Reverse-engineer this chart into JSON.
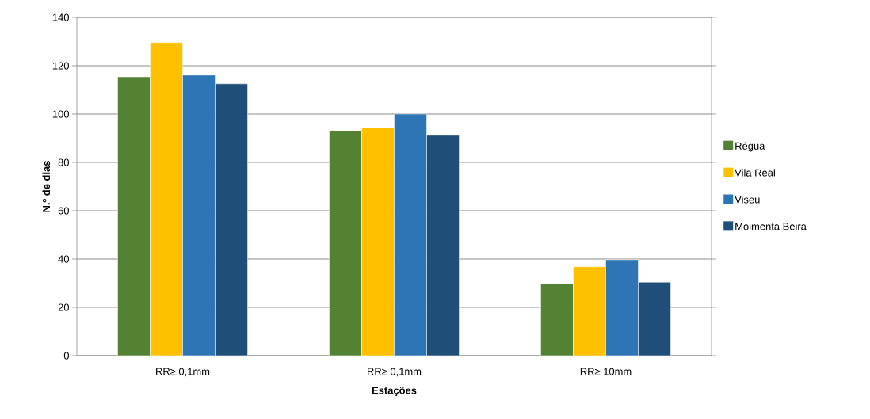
{
  "chart_data": {
    "type": "bar",
    "xlabel": "Estações",
    "ylabel": "N.º de dias",
    "categories": [
      "RR≥ 0,1mm",
      "RR≥ 0,1mm",
      "RR≥ 10mm"
    ],
    "series": [
      {
        "name": "Régua",
        "color": "#548235",
        "values": [
          115.4,
          93.1,
          29.8
        ]
      },
      {
        "name": "Vila Real",
        "color": "#ffc000",
        "values": [
          129.6,
          94.4,
          36.8
        ]
      },
      {
        "name": "Viseu",
        "color": "#2e75b6",
        "values": [
          116.1,
          100,
          39.7
        ]
      },
      {
        "name": "Moimenta Beira",
        "color": "#1f4e79",
        "values": [
          112.5,
          91.2,
          30.4
        ]
      }
    ],
    "ylim": [
      0,
      140
    ],
    "yticks": [
      0,
      20,
      40,
      60,
      80,
      100,
      120,
      140
    ],
    "grid": "y",
    "legend": "right"
  }
}
